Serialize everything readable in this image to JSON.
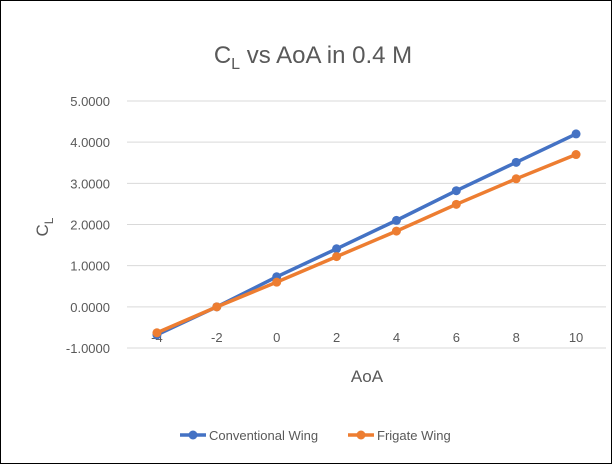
{
  "chart_data": {
    "type": "line",
    "title": "C",
    "title_subscript": "L",
    "title_suffix": " vs AoA in 0.4 M",
    "xlabel": "AoA",
    "ylabel": "C",
    "ylabel_subscript": "L",
    "x": [
      -4,
      -2,
      0,
      2,
      4,
      6,
      8,
      10
    ],
    "x_tick_labels": [
      "-4",
      "-2",
      "0",
      "2",
      "4",
      "6",
      "8",
      "10"
    ],
    "y_tick_labels": [
      "5.0000",
      "4.0000",
      "3.0000",
      "2.0000",
      "1.0000",
      "0.0000",
      "-1.0000"
    ],
    "ylim": [
      -1,
      5
    ],
    "grid": true,
    "legend_position": "bottom",
    "series": [
      {
        "name": "Conventional Wing",
        "color": "#4472c4",
        "values": [
          -0.68,
          0.0,
          0.73,
          1.41,
          2.1,
          2.82,
          3.51,
          4.2
        ]
      },
      {
        "name": "Frigate Wing",
        "color": "#ed7d31",
        "values": [
          -0.63,
          0.0,
          0.6,
          1.22,
          1.84,
          2.49,
          3.11,
          3.7
        ]
      }
    ]
  }
}
